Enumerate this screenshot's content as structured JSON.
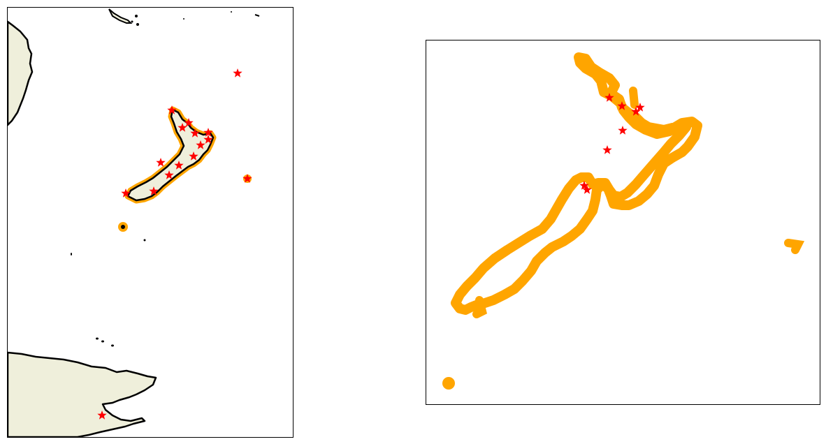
{
  "colors": {
    "land": "#efefdb",
    "coastline": "#000000",
    "outline": "#ffa500",
    "marker": "#ff0000",
    "background": "#ffffff"
  },
  "panels": [
    {
      "id": "left-map",
      "description_visible": false
    },
    {
      "id": "right-map",
      "description_visible": false
    }
  ]
}
